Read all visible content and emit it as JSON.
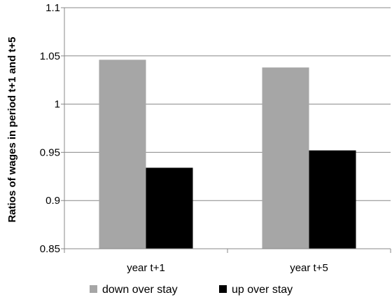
{
  "chart_data": {
    "type": "bar",
    "categories": [
      "year t+1",
      "year t+5"
    ],
    "series": [
      {
        "name": "down over stay",
        "color": "#a6a6a6",
        "values": [
          1.046,
          1.038
        ]
      },
      {
        "name": "up over stay",
        "color": "#000000",
        "values": [
          0.934,
          0.952
        ]
      }
    ],
    "title": "",
    "xlabel": "",
    "ylabel": "Ratios of wages in period t+1 and t+5",
    "ylim": [
      0.85,
      1.1
    ],
    "yticks": [
      "0.85",
      "0.9",
      "0.95",
      "1",
      "1.05",
      "1.1"
    ],
    "grid": true,
    "legend_position": "bottom"
  }
}
